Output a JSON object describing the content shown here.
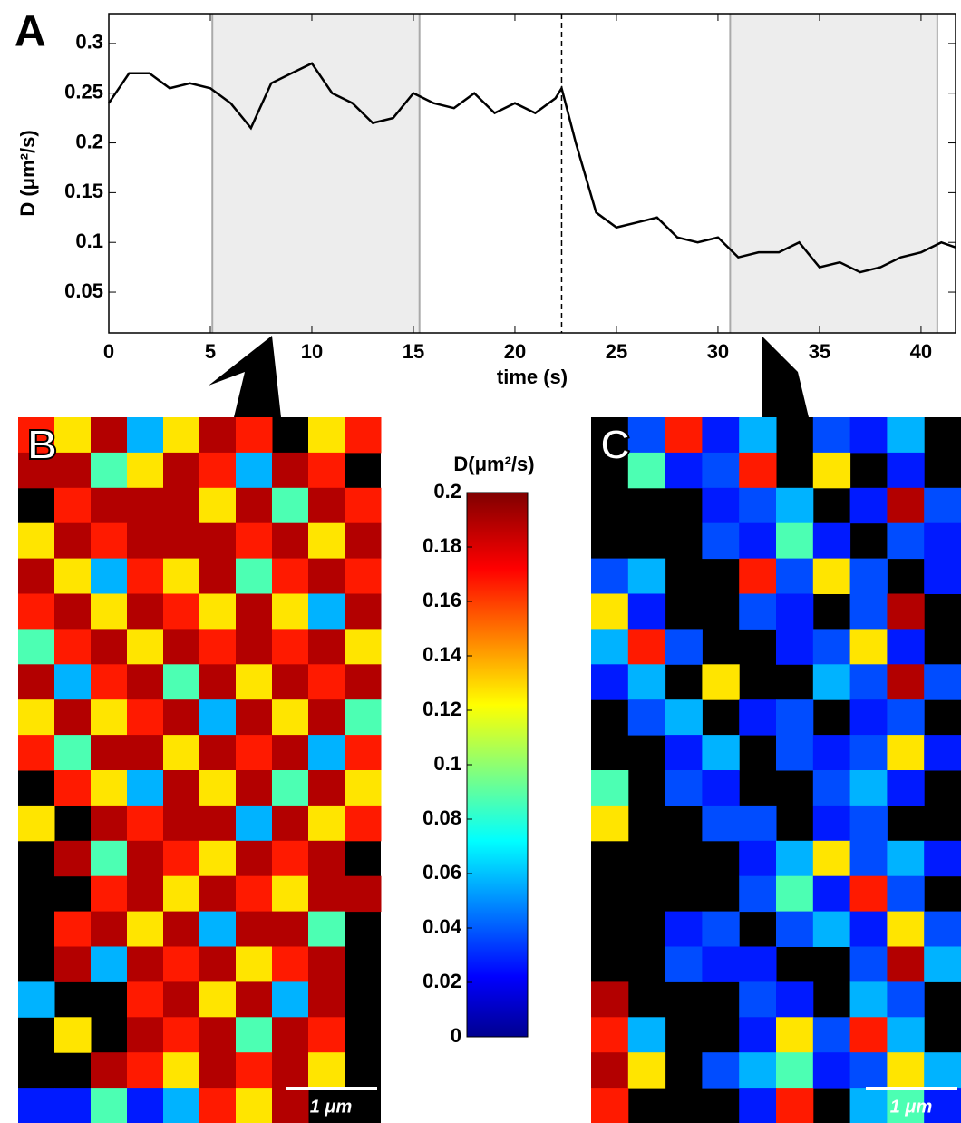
{
  "chart_data": [
    {
      "type": "line",
      "label": "A",
      "xlabel": "time (s)",
      "ylabel": "D (μm²/s)",
      "color": "#000000",
      "x": [
        0,
        1,
        2,
        3,
        4,
        5,
        6,
        7,
        8,
        9,
        10,
        11,
        12,
        13,
        14,
        15,
        16,
        17,
        18,
        19,
        20,
        21,
        22,
        22.3,
        23,
        24,
        25,
        26,
        27,
        28,
        29,
        30,
        31,
        32,
        33,
        34,
        35,
        36,
        37,
        38,
        39,
        40,
        41,
        41.7
      ],
      "values": [
        0.24,
        0.27,
        0.27,
        0.255,
        0.26,
        0.255,
        0.24,
        0.215,
        0.26,
        0.27,
        0.28,
        0.25,
        0.24,
        0.22,
        0.225,
        0.25,
        0.24,
        0.235,
        0.25,
        0.23,
        0.24,
        0.23,
        0.245,
        0.255,
        0.2,
        0.13,
        0.115,
        0.12,
        0.125,
        0.105,
        0.1,
        0.105,
        0.085,
        0.09,
        0.09,
        0.1,
        0.075,
        0.08,
        0.07,
        0.075,
        0.085,
        0.09,
        0.1,
        0.095
      ],
      "xlim": [
        0,
        41.7
      ],
      "ylim": [
        0.009,
        0.33
      ],
      "xticks": [
        0,
        5,
        10,
        15,
        20,
        25,
        30,
        35,
        40
      ],
      "yticks": [
        0.05,
        0.1,
        0.15,
        0.2,
        0.25,
        0.3
      ],
      "shaded_regions": [
        [
          5.1,
          15.3
        ],
        [
          30.6,
          40.8
        ]
      ],
      "marker_line": 22.3
    },
    {
      "type": "heatmap",
      "label": "B",
      "scale_label": "1 μm",
      "values": [
        [
          0.17,
          0.13,
          0.19,
          0.06,
          0.13,
          0.19,
          0.17,
          null,
          0.13,
          0.17
        ],
        [
          0.19,
          0.19,
          0.09,
          0.13,
          0.19,
          0.17,
          0.06,
          0.19,
          0.17,
          null
        ],
        [
          null,
          0.17,
          0.19,
          0.19,
          0.19,
          0.13,
          0.19,
          0.09,
          0.19,
          0.17
        ],
        [
          0.13,
          0.19,
          0.17,
          0.19,
          0.19,
          0.19,
          0.17,
          0.19,
          0.13,
          0.19
        ],
        [
          0.19,
          0.13,
          0.06,
          0.17,
          0.13,
          0.19,
          0.09,
          0.17,
          0.19,
          0.17
        ],
        [
          0.17,
          0.19,
          0.13,
          0.19,
          0.17,
          0.13,
          0.19,
          0.13,
          0.06,
          0.19
        ],
        [
          0.09,
          0.17,
          0.19,
          0.13,
          0.19,
          0.17,
          0.19,
          0.17,
          0.19,
          0.13
        ],
        [
          0.19,
          0.06,
          0.17,
          0.19,
          0.09,
          0.19,
          0.13,
          0.19,
          0.17,
          0.19
        ],
        [
          0.13,
          0.19,
          0.13,
          0.17,
          0.19,
          0.06,
          0.19,
          0.13,
          0.19,
          0.09
        ],
        [
          0.17,
          0.09,
          0.19,
          0.19,
          0.13,
          0.19,
          0.17,
          0.19,
          0.06,
          0.17
        ],
        [
          null,
          0.17,
          0.13,
          0.06,
          0.19,
          0.13,
          0.19,
          0.09,
          0.19,
          0.13
        ],
        [
          0.13,
          null,
          0.19,
          0.17,
          0.19,
          0.19,
          0.06,
          0.19,
          0.13,
          0.17
        ],
        [
          null,
          0.19,
          0.09,
          0.19,
          0.17,
          0.13,
          0.19,
          0.17,
          0.19,
          null
        ],
        [
          null,
          null,
          0.17,
          0.19,
          0.13,
          0.19,
          0.17,
          0.13,
          0.19,
          0.19
        ],
        [
          null,
          0.17,
          0.19,
          0.13,
          0.19,
          0.06,
          0.19,
          0.19,
          0.09,
          null
        ],
        [
          null,
          0.19,
          0.06,
          0.19,
          0.17,
          0.19,
          0.13,
          0.17,
          0.19,
          null
        ],
        [
          0.06,
          null,
          null,
          0.17,
          0.19,
          0.13,
          0.19,
          0.06,
          0.19,
          null
        ],
        [
          null,
          0.13,
          null,
          0.19,
          0.17,
          0.19,
          0.09,
          0.19,
          0.17,
          null
        ],
        [
          null,
          null,
          0.19,
          0.17,
          0.13,
          0.19,
          0.17,
          0.19,
          0.13,
          null
        ],
        [
          0.03,
          0.03,
          0.09,
          0.03,
          0.06,
          0.17,
          0.13,
          0.19,
          null,
          null
        ]
      ]
    },
    {
      "type": "heatmap",
      "label": "C",
      "scale_label": "1 μm",
      "values": [
        [
          null,
          0.04,
          0.17,
          0.03,
          0.06,
          null,
          0.04,
          0.03,
          0.06,
          null
        ],
        [
          null,
          0.09,
          0.03,
          0.04,
          0.17,
          null,
          0.13,
          null,
          0.03,
          null
        ],
        [
          null,
          null,
          null,
          0.03,
          0.04,
          0.06,
          null,
          0.03,
          0.19,
          0.04
        ],
        [
          null,
          null,
          null,
          0.04,
          0.03,
          0.09,
          0.03,
          null,
          0.04,
          0.03
        ],
        [
          0.04,
          0.06,
          null,
          null,
          0.17,
          0.04,
          0.13,
          0.04,
          null,
          0.03
        ],
        [
          0.13,
          0.03,
          null,
          null,
          0.04,
          0.03,
          null,
          0.04,
          0.19,
          null
        ],
        [
          0.06,
          0.17,
          0.04,
          null,
          null,
          0.03,
          0.04,
          0.13,
          0.03,
          null
        ],
        [
          0.03,
          0.06,
          null,
          0.13,
          null,
          null,
          0.06,
          0.04,
          0.19,
          0.04
        ],
        [
          null,
          0.04,
          0.06,
          null,
          0.03,
          0.04,
          null,
          0.03,
          0.04,
          null
        ],
        [
          null,
          null,
          0.03,
          0.06,
          null,
          0.04,
          0.03,
          0.04,
          0.13,
          0.03
        ],
        [
          0.09,
          null,
          0.04,
          0.03,
          null,
          null,
          0.04,
          0.06,
          0.03,
          null
        ],
        [
          0.13,
          null,
          null,
          0.04,
          0.04,
          null,
          0.03,
          0.04,
          null,
          null
        ],
        [
          null,
          null,
          null,
          null,
          0.03,
          0.06,
          0.13,
          0.04,
          0.06,
          0.03
        ],
        [
          null,
          null,
          null,
          null,
          0.04,
          0.09,
          0.03,
          0.17,
          0.04,
          null
        ],
        [
          null,
          null,
          0.03,
          0.04,
          null,
          0.04,
          0.06,
          0.03,
          0.13,
          0.04
        ],
        [
          null,
          null,
          0.04,
          0.03,
          0.03,
          null,
          null,
          0.04,
          0.19,
          0.06
        ],
        [
          0.19,
          null,
          null,
          null,
          0.04,
          0.03,
          null,
          0.06,
          0.04,
          null
        ],
        [
          0.17,
          0.06,
          null,
          null,
          0.03,
          0.13,
          0.04,
          0.17,
          0.06,
          null
        ],
        [
          0.19,
          0.13,
          null,
          0.04,
          0.06,
          0.09,
          0.03,
          0.04,
          0.13,
          0.06
        ],
        [
          0.17,
          null,
          null,
          null,
          0.03,
          0.17,
          null,
          0.06,
          0.09,
          0.03
        ]
      ]
    },
    {
      "type": "colorbar",
      "label": "D(μm²/s)",
      "clim": [
        0,
        0.2
      ],
      "ticks": [
        0,
        0.02,
        0.04,
        0.06,
        0.08,
        0.1,
        0.12,
        0.14,
        0.16,
        0.18,
        0.2
      ]
    }
  ]
}
